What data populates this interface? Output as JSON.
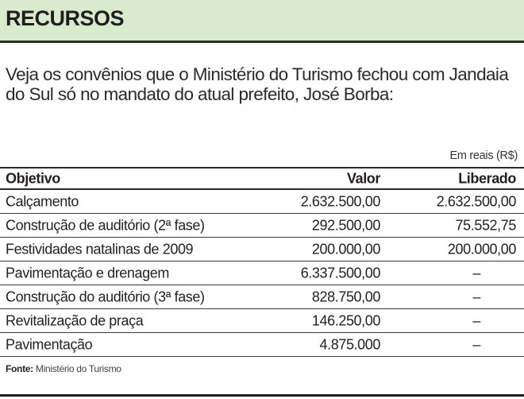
{
  "header": {
    "title": "RECURSOS",
    "band_color": "#d8ebcd"
  },
  "intro": "Veja os convênios que o Ministério do Turismo fechou com Jandaia do Sul só no mandato do atual prefeito, José Borba:",
  "unit_note": "Em reais (R$)",
  "table": {
    "columns": [
      "Objetivo",
      "Valor",
      "Liberado"
    ],
    "rows": [
      {
        "objetivo": "Calçamento",
        "valor": "2.632.500,00",
        "liberado": "2.632.500,00"
      },
      {
        "objetivo": "Construção de auditório (2ª fase)",
        "valor": "292.500,00",
        "liberado": "75.552,75"
      },
      {
        "objetivo": "Festividades natalinas de 2009",
        "valor": "200.000,00",
        "liberado": "200.000,00"
      },
      {
        "objetivo": "Pavimentação e drenagem",
        "valor": "6.337.500,00",
        "liberado": "–"
      },
      {
        "objetivo": "Construção do auditório (3ª fase)",
        "valor": "828.750,00",
        "liberado": "–"
      },
      {
        "objetivo": "Revitalização de praça",
        "valor": "146.250,00",
        "liberado": "–"
      },
      {
        "objetivo": "Pavimentação",
        "valor": "4.875.000",
        "liberado": "–"
      }
    ]
  },
  "source": {
    "label": "Fonte:",
    "text": "Ministério do Turismo"
  }
}
